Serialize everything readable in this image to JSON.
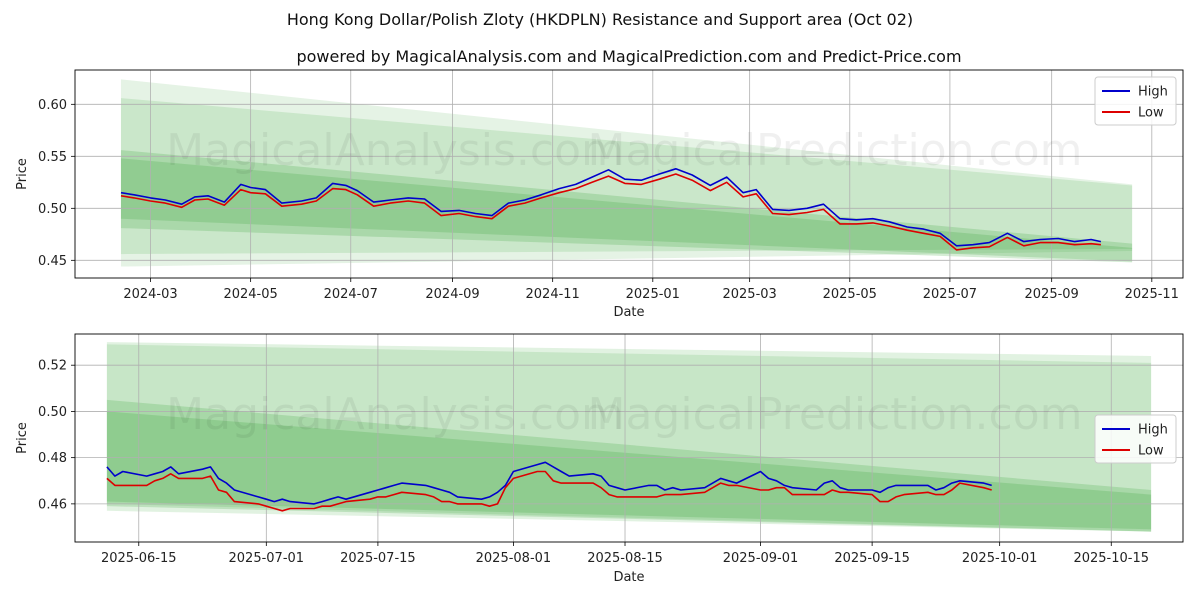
{
  "title": "Hong Kong Dollar/Polish Zloty (HKDPLN) Resistance and Support area (Oct 02)",
  "subtitle": "powered by MagicalAnalysis.com and MagicalPrediction.com and Predict-Price.com",
  "watermarks": [
    "MagicalAnalysis.com",
    "MagicalPrediction.com"
  ],
  "colors": {
    "high": "#0000cc",
    "low": "#dd0000",
    "band": "#2ca02c",
    "grid": "#b0b0b0"
  },
  "chart_data": [
    {
      "type": "line",
      "name": "top-chart",
      "xlabel": "Date",
      "ylabel": "Price",
      "x_range": [
        "2024-01-15",
        "2025-11-20"
      ],
      "ylim": [
        0.433,
        0.633
      ],
      "xticks": [
        "2024-03",
        "2024-05",
        "2024-07",
        "2024-09",
        "2024-11",
        "2025-01",
        "2025-03",
        "2025-05",
        "2025-07",
        "2025-09",
        "2025-11"
      ],
      "yticks": [
        "0.45",
        "0.50",
        "0.55",
        "0.60"
      ],
      "grid": true,
      "legend": {
        "position": "top-right",
        "entries": [
          "High",
          "Low"
        ]
      },
      "bands": [
        {
          "x": [
            "2024-02-12",
            "2025-10-20"
          ],
          "upper": [
            0.624,
            0.523
          ],
          "lower": [
            0.444,
            0.459
          ],
          "opacity": 0.12
        },
        {
          "x": [
            "2024-02-12",
            "2025-10-20"
          ],
          "upper": [
            0.606,
            0.522
          ],
          "lower": [
            0.456,
            0.461
          ],
          "opacity": 0.14
        },
        {
          "x": [
            "2024-02-12",
            "2025-10-20"
          ],
          "upper": [
            0.556,
            0.466
          ],
          "lower": [
            0.481,
            0.448
          ],
          "opacity": 0.2
        },
        {
          "x": [
            "2024-02-12",
            "2025-10-20"
          ],
          "upper": [
            0.548,
            0.462
          ],
          "lower": [
            0.49,
            0.449
          ],
          "opacity": 0.2
        }
      ],
      "series": [
        {
          "name": "High",
          "x": [
            "2024-02-12",
            "2024-02-20",
            "2024-03-01",
            "2024-03-10",
            "2024-03-20",
            "2024-03-28",
            "2024-04-05",
            "2024-04-15",
            "2024-04-25",
            "2024-05-01",
            "2024-05-10",
            "2024-05-20",
            "2024-06-01",
            "2024-06-10",
            "2024-06-20",
            "2024-06-28",
            "2024-07-05",
            "2024-07-15",
            "2024-07-25",
            "2024-08-05",
            "2024-08-15",
            "2024-08-25",
            "2024-09-05",
            "2024-09-15",
            "2024-09-25",
            "2024-10-05",
            "2024-10-15",
            "2024-10-25",
            "2024-11-05",
            "2024-11-15",
            "2024-11-25",
            "2024-12-05",
            "2024-12-15",
            "2024-12-25",
            "2025-01-05",
            "2025-01-15",
            "2025-01-25",
            "2025-02-05",
            "2025-02-15",
            "2025-02-25",
            "2025-03-05",
            "2025-03-15",
            "2025-03-25",
            "2025-04-05",
            "2025-04-15",
            "2025-04-25",
            "2025-05-05",
            "2025-05-15",
            "2025-05-25",
            "2025-06-05",
            "2025-06-15",
            "2025-06-25",
            "2025-07-05",
            "2025-07-15",
            "2025-07-25",
            "2025-08-05",
            "2025-08-15",
            "2025-08-25",
            "2025-09-05",
            "2025-09-15",
            "2025-09-25",
            "2025-10-01"
          ],
          "values": [
            0.515,
            0.513,
            0.51,
            0.508,
            0.504,
            0.511,
            0.512,
            0.506,
            0.523,
            0.52,
            0.518,
            0.505,
            0.507,
            0.51,
            0.524,
            0.522,
            0.517,
            0.506,
            0.508,
            0.51,
            0.509,
            0.497,
            0.498,
            0.495,
            0.493,
            0.505,
            0.508,
            0.513,
            0.519,
            0.523,
            0.53,
            0.537,
            0.528,
            0.527,
            0.533,
            0.538,
            0.532,
            0.522,
            0.53,
            0.515,
            0.518,
            0.499,
            0.498,
            0.5,
            0.504,
            0.49,
            0.489,
            0.49,
            0.487,
            0.482,
            0.48,
            0.476,
            0.464,
            0.465,
            0.467,
            0.476,
            0.468,
            0.47,
            0.471,
            0.468,
            0.47,
            0.468
          ]
        },
        {
          "name": "Low",
          "x": [
            "2024-02-12",
            "2024-02-20",
            "2024-03-01",
            "2024-03-10",
            "2024-03-20",
            "2024-03-28",
            "2024-04-05",
            "2024-04-15",
            "2024-04-25",
            "2024-05-01",
            "2024-05-10",
            "2024-05-20",
            "2024-06-01",
            "2024-06-10",
            "2024-06-20",
            "2024-06-28",
            "2024-07-05",
            "2024-07-15",
            "2024-07-25",
            "2024-08-05",
            "2024-08-15",
            "2024-08-25",
            "2024-09-05",
            "2024-09-15",
            "2024-09-25",
            "2024-10-05",
            "2024-10-15",
            "2024-10-25",
            "2024-11-05",
            "2024-11-15",
            "2024-11-25",
            "2024-12-05",
            "2024-12-15",
            "2024-12-25",
            "2025-01-05",
            "2025-01-15",
            "2025-01-25",
            "2025-02-05",
            "2025-02-15",
            "2025-02-25",
            "2025-03-05",
            "2025-03-15",
            "2025-03-25",
            "2025-04-05",
            "2025-04-15",
            "2025-04-25",
            "2025-05-05",
            "2025-05-15",
            "2025-05-25",
            "2025-06-05",
            "2025-06-15",
            "2025-06-25",
            "2025-07-05",
            "2025-07-15",
            "2025-07-25",
            "2025-08-05",
            "2025-08-15",
            "2025-08-25",
            "2025-09-05",
            "2025-09-15",
            "2025-09-25",
            "2025-10-01"
          ],
          "values": [
            0.512,
            0.51,
            0.507,
            0.505,
            0.501,
            0.508,
            0.509,
            0.503,
            0.518,
            0.515,
            0.514,
            0.502,
            0.504,
            0.507,
            0.519,
            0.518,
            0.513,
            0.502,
            0.505,
            0.507,
            0.505,
            0.493,
            0.495,
            0.492,
            0.49,
            0.502,
            0.505,
            0.51,
            0.515,
            0.519,
            0.525,
            0.531,
            0.524,
            0.523,
            0.528,
            0.533,
            0.527,
            0.517,
            0.525,
            0.511,
            0.514,
            0.495,
            0.494,
            0.496,
            0.499,
            0.485,
            0.485,
            0.486,
            0.483,
            0.479,
            0.476,
            0.473,
            0.46,
            0.462,
            0.463,
            0.472,
            0.464,
            0.467,
            0.467,
            0.465,
            0.466,
            0.465
          ]
        }
      ]
    },
    {
      "type": "line",
      "name": "bottom-chart",
      "xlabel": "Date",
      "ylabel": "Price",
      "x_range": [
        "2025-06-07",
        "2025-10-24"
      ],
      "ylim": [
        0.4435,
        0.5335
      ],
      "xticks": [
        "2025-06-15",
        "2025-07-01",
        "2025-07-15",
        "2025-08-01",
        "2025-08-15",
        "2025-09-01",
        "2025-09-15",
        "2025-10-01",
        "2025-10-15"
      ],
      "yticks": [
        "0.46",
        "0.48",
        "0.50",
        "0.52"
      ],
      "grid": true,
      "legend": {
        "position": "center-right",
        "entries": [
          "High",
          "Low"
        ]
      },
      "bands": [
        {
          "x": [
            "2025-06-11",
            "2025-10-20"
          ],
          "upper": [
            0.53,
            0.524
          ],
          "lower": [
            0.457,
            0.448
          ],
          "opacity": 0.14
        },
        {
          "x": [
            "2025-06-11",
            "2025-10-20"
          ],
          "upper": [
            0.529,
            0.521
          ],
          "lower": [
            0.46,
            0.448
          ],
          "opacity": 0.14
        },
        {
          "x": [
            "2025-06-11",
            "2025-10-20"
          ],
          "upper": [
            0.505,
            0.466
          ],
          "lower": [
            0.459,
            0.448
          ],
          "opacity": 0.2
        },
        {
          "x": [
            "2025-06-11",
            "2025-10-20"
          ],
          "upper": [
            0.5,
            0.464
          ],
          "lower": [
            0.461,
            0.449
          ],
          "opacity": 0.2
        }
      ],
      "series": [
        {
          "name": "High",
          "x": [
            "2025-06-11",
            "2025-06-12",
            "2025-06-13",
            "2025-06-16",
            "2025-06-17",
            "2025-06-18",
            "2025-06-19",
            "2025-06-20",
            "2025-06-23",
            "2025-06-24",
            "2025-06-25",
            "2025-06-26",
            "2025-06-27",
            "2025-06-30",
            "2025-07-01",
            "2025-07-02",
            "2025-07-03",
            "2025-07-04",
            "2025-07-07",
            "2025-07-08",
            "2025-07-09",
            "2025-07-10",
            "2025-07-11",
            "2025-07-14",
            "2025-07-15",
            "2025-07-16",
            "2025-07-17",
            "2025-07-18",
            "2025-07-21",
            "2025-07-22",
            "2025-07-23",
            "2025-07-24",
            "2025-07-25",
            "2025-07-28",
            "2025-07-29",
            "2025-07-30",
            "2025-07-31",
            "2025-08-01",
            "2025-08-04",
            "2025-08-05",
            "2025-08-06",
            "2025-08-07",
            "2025-08-08",
            "2025-08-11",
            "2025-08-12",
            "2025-08-13",
            "2025-08-14",
            "2025-08-15",
            "2025-08-18",
            "2025-08-19",
            "2025-08-20",
            "2025-08-21",
            "2025-08-22",
            "2025-08-25",
            "2025-08-26",
            "2025-08-27",
            "2025-08-28",
            "2025-08-29",
            "2025-09-01",
            "2025-09-02",
            "2025-09-03",
            "2025-09-04",
            "2025-09-05",
            "2025-09-08",
            "2025-09-09",
            "2025-09-10",
            "2025-09-11",
            "2025-09-12",
            "2025-09-15",
            "2025-09-16",
            "2025-09-17",
            "2025-09-18",
            "2025-09-19",
            "2025-09-22",
            "2025-09-23",
            "2025-09-24",
            "2025-09-25",
            "2025-09-26",
            "2025-09-29",
            "2025-09-30"
          ],
          "values": [
            0.476,
            0.472,
            0.474,
            0.472,
            0.473,
            0.474,
            0.476,
            0.473,
            0.475,
            0.476,
            0.471,
            0.469,
            0.466,
            0.463,
            0.462,
            0.461,
            0.462,
            0.461,
            0.46,
            0.461,
            0.462,
            0.463,
            0.462,
            0.465,
            0.466,
            0.467,
            0.468,
            0.469,
            0.468,
            0.467,
            0.466,
            0.465,
            0.463,
            0.462,
            0.463,
            0.465,
            0.468,
            0.474,
            0.477,
            0.478,
            0.476,
            0.474,
            0.472,
            0.473,
            0.472,
            0.468,
            0.467,
            0.466,
            0.468,
            0.468,
            0.466,
            0.467,
            0.466,
            0.467,
            0.469,
            0.471,
            0.47,
            0.469,
            0.474,
            0.471,
            0.47,
            0.468,
            0.467,
            0.466,
            0.469,
            0.47,
            0.467,
            0.466,
            0.466,
            0.465,
            0.467,
            0.468,
            0.468,
            0.468,
            0.466,
            0.467,
            0.469,
            0.47,
            0.469,
            0.468
          ]
        },
        {
          "name": "Low",
          "x": [
            "2025-06-11",
            "2025-06-12",
            "2025-06-13",
            "2025-06-16",
            "2025-06-17",
            "2025-06-18",
            "2025-06-19",
            "2025-06-20",
            "2025-06-23",
            "2025-06-24",
            "2025-06-25",
            "2025-06-26",
            "2025-06-27",
            "2025-06-30",
            "2025-07-01",
            "2025-07-02",
            "2025-07-03",
            "2025-07-04",
            "2025-07-07",
            "2025-07-08",
            "2025-07-09",
            "2025-07-10",
            "2025-07-11",
            "2025-07-14",
            "2025-07-15",
            "2025-07-16",
            "2025-07-17",
            "2025-07-18",
            "2025-07-21",
            "2025-07-22",
            "2025-07-23",
            "2025-07-24",
            "2025-07-25",
            "2025-07-28",
            "2025-07-29",
            "2025-07-30",
            "2025-07-31",
            "2025-08-01",
            "2025-08-04",
            "2025-08-05",
            "2025-08-06",
            "2025-08-07",
            "2025-08-08",
            "2025-08-11",
            "2025-08-12",
            "2025-08-13",
            "2025-08-14",
            "2025-08-15",
            "2025-08-18",
            "2025-08-19",
            "2025-08-20",
            "2025-08-21",
            "2025-08-22",
            "2025-08-25",
            "2025-08-26",
            "2025-08-27",
            "2025-08-28",
            "2025-08-29",
            "2025-09-01",
            "2025-09-02",
            "2025-09-03",
            "2025-09-04",
            "2025-09-05",
            "2025-09-08",
            "2025-09-09",
            "2025-09-10",
            "2025-09-11",
            "2025-09-12",
            "2025-09-15",
            "2025-09-16",
            "2025-09-17",
            "2025-09-18",
            "2025-09-19",
            "2025-09-22",
            "2025-09-23",
            "2025-09-24",
            "2025-09-25",
            "2025-09-26",
            "2025-09-29",
            "2025-09-30"
          ],
          "values": [
            0.471,
            0.468,
            0.468,
            0.468,
            0.47,
            0.471,
            0.473,
            0.471,
            0.471,
            0.472,
            0.466,
            0.465,
            0.461,
            0.46,
            0.459,
            0.458,
            0.457,
            0.458,
            0.458,
            0.459,
            0.459,
            0.46,
            0.461,
            0.462,
            0.463,
            0.463,
            0.464,
            0.465,
            0.464,
            0.463,
            0.461,
            0.461,
            0.46,
            0.46,
            0.459,
            0.46,
            0.467,
            0.471,
            0.474,
            0.474,
            0.47,
            0.469,
            0.469,
            0.469,
            0.467,
            0.464,
            0.463,
            0.463,
            0.463,
            0.463,
            0.464,
            0.464,
            0.464,
            0.465,
            0.467,
            0.469,
            0.468,
            0.468,
            0.466,
            0.466,
            0.467,
            0.467,
            0.464,
            0.464,
            0.464,
            0.466,
            0.465,
            0.465,
            0.464,
            0.461,
            0.461,
            0.463,
            0.464,
            0.465,
            0.464,
            0.464,
            0.466,
            0.469,
            0.467,
            0.466
          ]
        }
      ]
    }
  ]
}
